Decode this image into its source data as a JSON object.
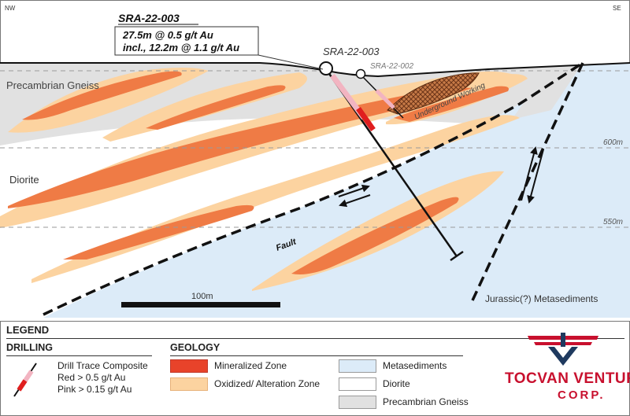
{
  "colors": {
    "metasediments": "#dcebf8",
    "diorite": "#ffffff",
    "gneiss": "#e1e1e1",
    "alteration": "#fcd3a0",
    "mineralized": "#ef7b45",
    "drill_red": "#e01e1e",
    "drill_pink": "#f2b4c1",
    "logo_red": "#c8102e",
    "logo_navy": "#1f3a5f"
  },
  "section": {
    "nw_label": "NW",
    "se_label": "SE",
    "gneiss_label": "Precambrian Gneiss",
    "diorite_label": "Diorite",
    "meta_label": "Jurassic(?) Metasediments",
    "fault_label": "Fault",
    "underground_label": "Underground Working",
    "elev_600": "600m",
    "elev_550": "550m",
    "scale_label": "100m",
    "hole_main": "SRA-22-003",
    "hole_secondary": "SRA-22-002"
  },
  "callout": {
    "hole": "SRA-22-003",
    "line1": "27.5m @ 0.5 g/t Au",
    "line2": "incl., 12.2m @ 1.1 g/t Au"
  },
  "legend": {
    "title": "LEGEND",
    "drilling_heading": "DRILLING",
    "drill_line1": "Drill Trace Composite",
    "drill_line2": "Red > 0.5 g/t Au",
    "drill_line3": "Pink > 0.15 g/t Au",
    "geology_heading": "GEOLOGY",
    "mineralized": "Mineralized Zone",
    "alteration": "Oxidized/ Alteration Zone",
    "metasediments": "Metasediments",
    "diorite": "Diorite",
    "gneiss": "Precambrian Gneiss",
    "logo_line1": "TOCVAN VENTURES",
    "logo_line2": "CORP."
  }
}
